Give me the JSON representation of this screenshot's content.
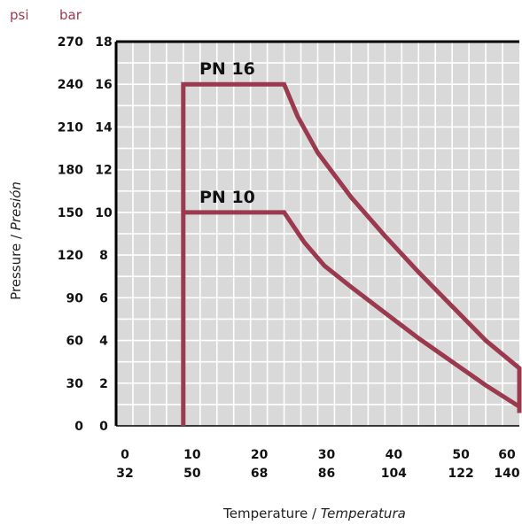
{
  "chart_data": {
    "type": "line",
    "x_axis": {
      "primary_unit": "°C",
      "primary_ticks": [
        "0",
        "10",
        "20",
        "30",
        "40",
        "50",
        "60"
      ],
      "primary_values": [
        0,
        10,
        20,
        30,
        40,
        50,
        60
      ],
      "secondary_ticks": [
        "32",
        "50",
        "68",
        "86",
        "104",
        "122",
        "140"
      ],
      "range": [
        0,
        60
      ],
      "label_main": "Temperature",
      "label_sep": " / ",
      "label_alt": "Temperatura"
    },
    "y_axis": {
      "unit_left": "psi",
      "unit_right": "bar",
      "bar_ticks": [
        "0",
        "2",
        "4",
        "6",
        "8",
        "10",
        "12",
        "14",
        "16",
        "18"
      ],
      "bar_values": [
        0,
        2,
        4,
        6,
        8,
        10,
        12,
        14,
        16,
        18
      ],
      "psi_ticks": [
        "0",
        "30",
        "60",
        "90",
        "120",
        "150",
        "180",
        "210",
        "240",
        "270"
      ],
      "range": [
        0,
        18
      ],
      "label_main": "Pressure",
      "label_sep": " / ",
      "label_alt": "Presión"
    },
    "grid": true,
    "grid_x_step": 2.5,
    "grid_y_step": 1,
    "series": [
      {
        "name": "PN 16",
        "points": [
          [
            10,
            0
          ],
          [
            10,
            16
          ],
          [
            25,
            16
          ],
          [
            27,
            14.5
          ],
          [
            30,
            12.8
          ],
          [
            35,
            10.7
          ],
          [
            40,
            8.9
          ],
          [
            45,
            7.2
          ],
          [
            50,
            5.6
          ],
          [
            55,
            4.0
          ],
          [
            60,
            2.7
          ],
          [
            60,
            0.6
          ]
        ]
      },
      {
        "name": "PN 10",
        "points": [
          [
            10,
            10
          ],
          [
            25,
            10
          ],
          [
            28,
            8.6
          ],
          [
            31,
            7.5
          ],
          [
            35,
            6.5
          ],
          [
            40,
            5.3
          ],
          [
            45,
            4.1
          ],
          [
            50,
            3.0
          ],
          [
            55,
            1.9
          ],
          [
            60,
            0.9
          ]
        ]
      }
    ],
    "line_color": "#9b3a4f",
    "plot_background": "#d9d9d9",
    "grid_color": "#ffffff"
  }
}
